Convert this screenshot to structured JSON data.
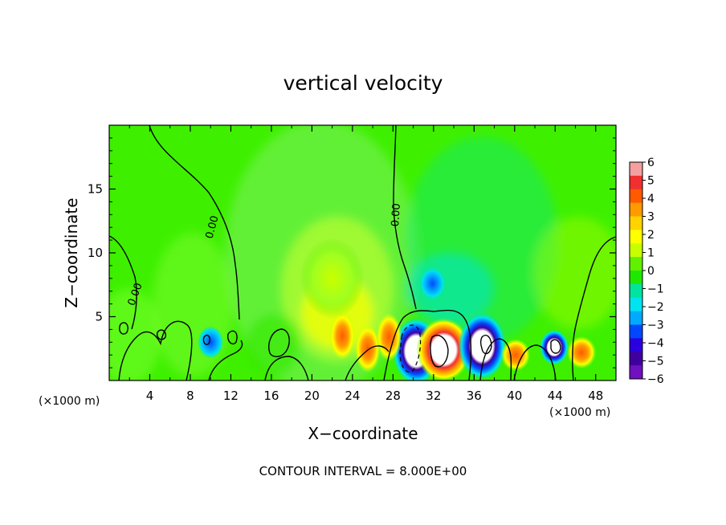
{
  "chart_data": {
    "type": "heatmap",
    "title": "vertical velocity",
    "xlabel": "X−coordinate",
    "ylabel": "Z−coordinate",
    "x_unit_left": "(×1000 m)",
    "x_unit_right": "(×1000 m)",
    "xlim": [
      0,
      50
    ],
    "ylim": [
      0,
      20
    ],
    "x_ticks": [
      4,
      8,
      12,
      16,
      20,
      24,
      28,
      32,
      36,
      40,
      44,
      48
    ],
    "x_tick_labels": [
      "4",
      "8",
      "12",
      "16",
      "20",
      "24",
      "28",
      "32",
      "36",
      "40",
      "44",
      "48"
    ],
    "y_ticks": [
      5,
      10,
      15
    ],
    "y_tick_labels": [
      "5",
      "10",
      "15"
    ],
    "colorbar": {
      "min": -6,
      "max": 6,
      "ticks": [
        6,
        5,
        4,
        3,
        2,
        1,
        0,
        -1,
        -2,
        -3,
        -4,
        -5,
        -6
      ],
      "tick_labels": [
        "6",
        "5",
        "4",
        "3",
        "2",
        "1",
        "0",
        "−1",
        "−2",
        "−3",
        "−4",
        "−5",
        "−6"
      ],
      "colors": [
        "#f2a0a0",
        "#f03030",
        "#ff5a00",
        "#ff9a00",
        "#ffd200",
        "#ffff00",
        "#c8ff00",
        "#60f000",
        "#1ee800",
        "#00e4a0",
        "#00e4f0",
        "#00aaff",
        "#0048ff",
        "#2a00e0",
        "#4000a0",
        "#7010c0"
      ]
    },
    "contour_labels": [
      "0.00",
      "0.00",
      "0.00"
    ],
    "contour_interval_text": "CONTOUR INTERVAL = 8.000E+00",
    "features": [
      {
        "x": 30.3,
        "z": 2.3,
        "value": -10
      },
      {
        "x": 33.0,
        "z": 2.4,
        "value": 10
      },
      {
        "x": 36.8,
        "z": 2.7,
        "value": -8
      },
      {
        "x": 40.1,
        "z": 2.0,
        "value": 4.5
      },
      {
        "x": 43.9,
        "z": 2.6,
        "value": -6
      },
      {
        "x": 46.6,
        "z": 2.2,
        "value": 4
      },
      {
        "x": 23.0,
        "z": 3.5,
        "value": 3
      },
      {
        "x": 25.5,
        "z": 2.5,
        "value": 2.5
      },
      {
        "x": 27.6,
        "z": 3.4,
        "value": 3
      },
      {
        "x": 31.9,
        "z": 7.6,
        "value": -2
      },
      {
        "x": 10.0,
        "z": 3.0,
        "value": -2
      },
      {
        "x": 22.0,
        "z": 8.0,
        "value": 1.2
      }
    ]
  }
}
